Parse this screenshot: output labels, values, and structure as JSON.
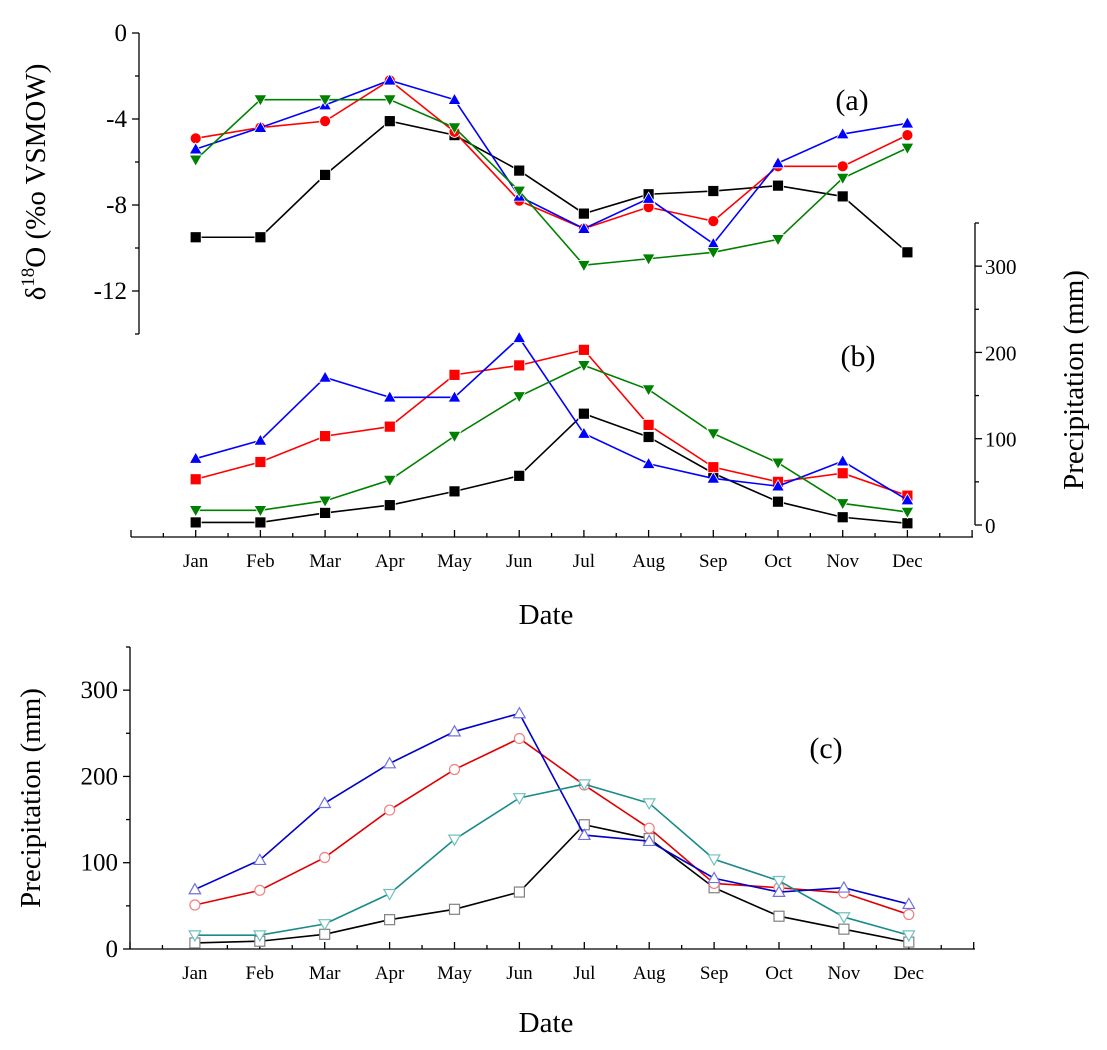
{
  "chart_data": [
    {
      "id": "a",
      "type": "line",
      "panel_label": "(a)",
      "ylabel": "δ18O (‰ VSMOW)",
      "ylabel_main": "δ",
      "ylabel_sup": "18",
      "ylabel_rest": "O (%o VSMOW)",
      "y_axis_side": "left",
      "ylim": [
        -14,
        0
      ],
      "yticks": [
        0,
        -4,
        -8,
        -12
      ],
      "ytick_labels": [
        "0",
        "-4",
        "-8",
        "-12"
      ],
      "categories": [
        "Jan",
        "Feb",
        "Mar",
        "Apr",
        "May",
        "Jun",
        "Jul",
        "Aug",
        "Sep",
        "Oct",
        "Nov",
        "Dec"
      ],
      "series": [
        {
          "name": "black-square",
          "marker": "square",
          "filled": true,
          "color": "#000000",
          "values": [
            -9.5,
            -9.5,
            -6.6,
            -4.1,
            -4.75,
            -6.4,
            -8.4,
            -7.5,
            -7.35,
            -7.1,
            -7.6,
            -10.2
          ]
        },
        {
          "name": "red-circle",
          "marker": "circle",
          "filled": true,
          "color": "#ff0000",
          "values": [
            -4.9,
            -4.4,
            -4.1,
            -2.2,
            -4.6,
            -7.8,
            -9.1,
            -8.1,
            -8.75,
            -6.2,
            -6.2,
            -4.75
          ]
        },
        {
          "name": "blue-triangle-up",
          "marker": "triangle-up",
          "filled": true,
          "color": "#0000ff",
          "values": [
            -5.4,
            -4.4,
            -3.35,
            -2.2,
            -3.1,
            -7.6,
            -9.1,
            -7.7,
            -9.8,
            -6.05,
            -4.7,
            -4.2
          ]
        },
        {
          "name": "green-triangle-down",
          "marker": "triangle-down",
          "filled": true,
          "color": "#008000",
          "values": [
            -5.9,
            -3.1,
            -3.1,
            -3.1,
            -4.4,
            -7.35,
            -10.8,
            -10.5,
            -10.2,
            -9.6,
            -6.75,
            -5.35
          ]
        }
      ]
    },
    {
      "id": "b",
      "type": "line",
      "panel_label": "(b)",
      "ylabel": "Precipitation (mm)",
      "y_axis_side": "right",
      "ylim": [
        0,
        350
      ],
      "yticks": [
        0,
        100,
        200,
        300
      ],
      "ytick_labels": [
        "0",
        "100",
        "200",
        "300"
      ],
      "xlabel": "Date",
      "categories": [
        "Jan",
        "Feb",
        "Mar",
        "Apr",
        "May",
        "Jun",
        "Jul",
        "Aug",
        "Sep",
        "Oct",
        "Nov",
        "Dec"
      ],
      "series": [
        {
          "name": "black-square",
          "marker": "square",
          "filled": true,
          "color": "#000000",
          "values": [
            3,
            3,
            14,
            23,
            39,
            57,
            129,
            102,
            60,
            27,
            9,
            2
          ]
        },
        {
          "name": "red-square",
          "marker": "square",
          "filled": true,
          "color": "#ff0000",
          "values": [
            53,
            73,
            103,
            114,
            174,
            185,
            203,
            116,
            67,
            50,
            60,
            34
          ]
        },
        {
          "name": "blue-triangle-up",
          "marker": "triangle-up",
          "filled": true,
          "color": "#0000ff",
          "values": [
            77,
            98,
            171,
            148,
            148,
            217,
            106,
            71,
            54,
            45,
            74,
            29
          ]
        },
        {
          "name": "green-triangle-down",
          "marker": "triangle-down",
          "filled": true,
          "color": "#008000",
          "values": [
            17,
            17,
            28,
            52,
            103,
            149,
            185,
            157,
            106,
            72,
            25,
            15
          ]
        }
      ]
    },
    {
      "id": "c",
      "type": "line",
      "panel_label": "(c)",
      "ylabel": "Precipitation (mm)",
      "y_axis_side": "left",
      "ylim": [
        0,
        350
      ],
      "yticks": [
        0,
        100,
        200,
        300
      ],
      "ytick_labels": [
        "0",
        "100",
        "200",
        "300"
      ],
      "xlabel": "Date",
      "categories": [
        "Jan",
        "Feb",
        "Mar",
        "Apr",
        "May",
        "Jun",
        "Jul",
        "Aug",
        "Sep",
        "Oct",
        "Nov",
        "Dec"
      ],
      "series": [
        {
          "name": "black-open-square",
          "marker": "square",
          "filled": false,
          "color": "#000000",
          "marker_color": "#808080",
          "values": [
            7,
            9,
            17,
            34,
            46,
            66,
            144,
            128,
            71,
            38,
            23,
            8
          ]
        },
        {
          "name": "red-open-circle",
          "marker": "circle",
          "filled": false,
          "color": "#e00000",
          "marker_color": "#f08080",
          "values": [
            51,
            68,
            106,
            161,
            208,
            244,
            190,
            140,
            76,
            71,
            65,
            40
          ]
        },
        {
          "name": "blue-open-triangle-up",
          "marker": "triangle-up",
          "filled": false,
          "color": "#0000cc",
          "marker_color": "#7070e0",
          "values": [
            69,
            103,
            169,
            215,
            252,
            273,
            132,
            125,
            82,
            66,
            71,
            52
          ]
        },
        {
          "name": "teal-open-triangle-down",
          "marker": "triangle-down",
          "filled": false,
          "color": "#1a8a8a",
          "marker_color": "#70c0c0",
          "values": [
            16,
            16,
            29,
            64,
            127,
            175,
            191,
            169,
            104,
            79,
            37,
            16
          ]
        }
      ]
    }
  ]
}
